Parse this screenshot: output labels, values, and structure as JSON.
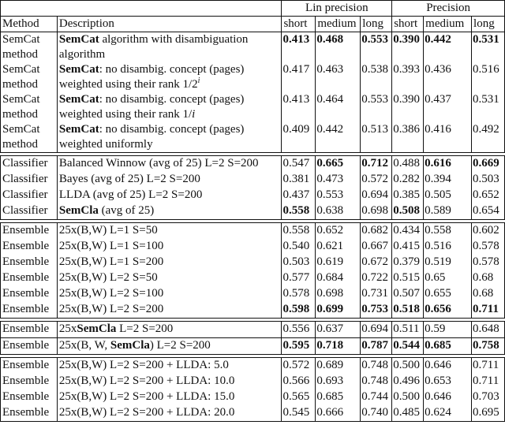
{
  "header": {
    "group_lin": "Lin precision",
    "group_prec": "Precision",
    "method": "Method",
    "description": "Description",
    "subcols": [
      "short",
      "medium",
      "long",
      "short",
      "medium",
      "long"
    ]
  },
  "groups": [
    {
      "style": "grp",
      "rows": [
        {
          "method": "SemCat method",
          "desc": [
            {
              "t": "SemCat",
              "s": "b"
            },
            {
              "t": " algorithm with disambiguation algorithm"
            }
          ],
          "values": [
            "0.413",
            "0.468",
            "0.553",
            "0.390",
            "0.442",
            "0.531"
          ],
          "bold": [
            1,
            1,
            1,
            1,
            1,
            1
          ],
          "two": true
        },
        {
          "method": "SemCat method",
          "desc": [
            {
              "t": "SemCat",
              "s": "b"
            },
            {
              "t": ": no disambig. concept (pages) weighted using their rank 1/2"
            },
            {
              "t": "i",
              "s": "sup"
            }
          ],
          "values": [
            "0.417",
            "0.463",
            "0.538",
            "0.393",
            "0.436",
            "0.516"
          ],
          "bold": [
            0,
            0,
            0,
            0,
            0,
            0
          ],
          "two": true
        },
        {
          "method": "SemCat method",
          "desc": [
            {
              "t": "SemCat",
              "s": "b"
            },
            {
              "t": ": no disambig. concept (pages) weighted using their rank 1/"
            },
            {
              "t": "i",
              "s": "i"
            }
          ],
          "values": [
            "0.413",
            "0.464",
            "0.553",
            "0.390",
            "0.437",
            "0.531"
          ],
          "bold": [
            0,
            0,
            0,
            0,
            0,
            0
          ],
          "two": true
        },
        {
          "method": "SemCat method",
          "desc": [
            {
              "t": "SemCat",
              "s": "b"
            },
            {
              "t": ": no disambig. concept (pages) weighted uniformly"
            }
          ],
          "values": [
            "0.409",
            "0.442",
            "0.513",
            "0.386",
            "0.416",
            "0.492"
          ],
          "bold": [
            0,
            0,
            0,
            0,
            0,
            0
          ],
          "two": true
        }
      ]
    },
    {
      "style": "grp",
      "rows": [
        {
          "method": "Classifier",
          "desc": [
            {
              "t": "Balanced Winnow (avg of 25) L=2 S=200"
            }
          ],
          "values": [
            "0.547",
            "0.665",
            "0.712",
            "0.488",
            "0.616",
            "0.669"
          ],
          "bold": [
            0,
            1,
            1,
            0,
            1,
            1
          ]
        },
        {
          "method": "Classifier",
          "desc": [
            {
              "t": "Bayes (avg of 25) L=2 S=200"
            }
          ],
          "values": [
            "0.381",
            "0.473",
            "0.572",
            "0.282",
            "0.394",
            "0.503"
          ],
          "bold": [
            0,
            0,
            0,
            0,
            0,
            0
          ]
        },
        {
          "method": "Classifier",
          "desc": [
            {
              "t": "LLDA (avg of 25) L=2 S=200"
            }
          ],
          "values": [
            "0.437",
            "0.553",
            "0.694",
            "0.385",
            "0.505",
            "0.652"
          ],
          "bold": [
            0,
            0,
            0,
            0,
            0,
            0
          ]
        },
        {
          "method": "Classifier",
          "desc": [
            {
              "t": "SemCla",
              "s": "b"
            },
            {
              "t": " (avg of 25)"
            }
          ],
          "values": [
            "0.558",
            "0.638",
            "0.698",
            "0.508",
            "0.589",
            "0.654"
          ],
          "bold": [
            1,
            0,
            0,
            1,
            0,
            0
          ]
        }
      ]
    },
    {
      "style": "grp",
      "rows": [
        {
          "method": "Ensemble",
          "desc": [
            {
              "t": "25x(B,W) L=1 S=50"
            }
          ],
          "values": [
            "0.558",
            "0.652",
            "0.682",
            "0.434",
            "0.558",
            "0.602"
          ],
          "bold": [
            0,
            0,
            0,
            0,
            0,
            0
          ]
        },
        {
          "method": "Ensemble",
          "desc": [
            {
              "t": "25x(B,W) L=1 S=100"
            }
          ],
          "values": [
            "0.540",
            "0.621",
            "0.667",
            "0.415",
            "0.516",
            "0.578"
          ],
          "bold": [
            0,
            0,
            0,
            0,
            0,
            0
          ]
        },
        {
          "method": "Ensemble",
          "desc": [
            {
              "t": "25x(B,W) L=1 S=200"
            }
          ],
          "values": [
            "0.503",
            "0.619",
            "0.672",
            "0.379",
            "0.519",
            "0.578"
          ],
          "bold": [
            0,
            0,
            0,
            0,
            0,
            0
          ]
        },
        {
          "method": "Ensemble",
          "desc": [
            {
              "t": "25x(B,W) L=2 S=50"
            }
          ],
          "values": [
            "0.577",
            "0.684",
            "0.722",
            "0.515",
            "0.65",
            "0.68"
          ],
          "bold": [
            0,
            0,
            0,
            0,
            0,
            0
          ]
        },
        {
          "method": "Ensemble",
          "desc": [
            {
              "t": "25x(B,W) L=2 S=100"
            }
          ],
          "values": [
            "0.578",
            "0.698",
            "0.731",
            "0.507",
            "0.655",
            "0.68"
          ],
          "bold": [
            0,
            0,
            0,
            0,
            0,
            0
          ]
        },
        {
          "method": "Ensemble",
          "desc": [
            {
              "t": "25x(B,W) L=2 S=200"
            }
          ],
          "values": [
            "0.598",
            "0.699",
            "0.753",
            "0.518",
            "0.656",
            "0.711"
          ],
          "bold": [
            1,
            1,
            1,
            1,
            1,
            1
          ]
        }
      ]
    },
    {
      "style": "boxed",
      "rows": [
        {
          "method": "Ensemble",
          "desc": [
            {
              "t": "25x"
            },
            {
              "t": "SemCla",
              "s": "b"
            },
            {
              "t": " L=2 S=200"
            }
          ],
          "values": [
            "0.556",
            "0.637",
            "0.694",
            "0.511",
            "0.59",
            "0.648"
          ],
          "bold": [
            0,
            0,
            0,
            0,
            0,
            0
          ]
        },
        {
          "method": "Ensemble",
          "desc": [
            {
              "t": "25x(B, W, "
            },
            {
              "t": "SemCla",
              "s": "b"
            },
            {
              "t": ") L=2 S=200"
            }
          ],
          "values": [
            "0.595",
            "0.718",
            "0.787",
            "0.544",
            "0.685",
            "0.758"
          ],
          "bold": [
            1,
            1,
            1,
            1,
            1,
            1
          ]
        }
      ]
    },
    {
      "style": "grp",
      "rows": [
        {
          "method": "Ensemble",
          "desc": [
            {
              "t": "25x(B,W) L=2 S=200 + LLDA: 5.0"
            }
          ],
          "values": [
            "0.572",
            "0.689",
            "0.748",
            "0.500",
            "0.646",
            "0.711"
          ],
          "bold": [
            0,
            0,
            0,
            0,
            0,
            0
          ]
        },
        {
          "method": "Ensemble",
          "desc": [
            {
              "t": "25x(B,W) L=2 S=200 + LLDA: 10.0"
            }
          ],
          "values": [
            "0.566",
            "0.693",
            "0.748",
            "0.496",
            "0.653",
            "0.711"
          ],
          "bold": [
            0,
            0,
            0,
            0,
            0,
            0
          ]
        },
        {
          "method": "Ensemble",
          "desc": [
            {
              "t": "25x(B,W) L=2 S=200 + LLDA: 15.0"
            }
          ],
          "values": [
            "0.565",
            "0.685",
            "0.744",
            "0.500",
            "0.646",
            "0.703"
          ],
          "bold": [
            0,
            0,
            0,
            0,
            0,
            0
          ]
        },
        {
          "method": "Ensemble",
          "desc": [
            {
              "t": "25x(B,W) L=2 S=200 + LLDA: 20.0"
            }
          ],
          "values": [
            "0.545",
            "0.666",
            "0.740",
            "0.485",
            "0.624",
            "0.695"
          ],
          "bold": [
            0,
            0,
            0,
            0,
            0,
            0
          ]
        }
      ]
    }
  ]
}
